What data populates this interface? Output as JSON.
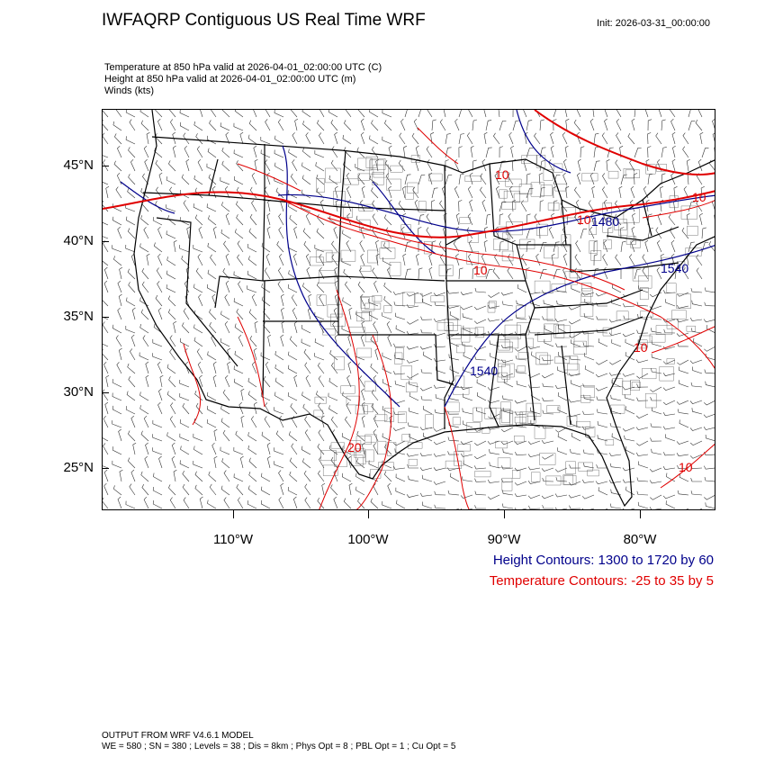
{
  "header": {
    "title": "IWFAQRP Contiguous US Real Time WRF",
    "init": "Init: 2026-03-31_00:00:00"
  },
  "fields": {
    "temperature": "Temperature at 850 hPa valid at 2026-04-01_02:00:00 UTC   (C)",
    "height": "Height at 850 hPa valid at 2026-04-01_02:00:00 UTC   (m)",
    "winds": "Winds   (kts)"
  },
  "axes": {
    "lat_labels": [
      "45°N",
      "40°N",
      "35°N",
      "30°N",
      "25°N"
    ],
    "lon_labels": [
      "110°W",
      "100°W",
      "90°W",
      "80°W"
    ]
  },
  "contour_labels": {
    "height": [
      "1540",
      "1540",
      "1480"
    ],
    "temperature": [
      "10",
      "10",
      "10",
      "20",
      "10",
      "10",
      "10"
    ]
  },
  "legend": {
    "height": "Height Contours: 1300 to 1720 by 60",
    "temperature": "Temperature Contours: -25 to 35 by 5",
    "height_color": "#00008b",
    "temperature_color": "#e00000"
  },
  "footer": {
    "line1": "OUTPUT FROM WRF V4.6.1 MODEL",
    "line2": "WE = 580 ; SN = 380 ; Levels = 38 ; Dis = 8km ; Phys Opt = 8 ; PBL Opt = 1 ; Cu Opt = 5"
  }
}
